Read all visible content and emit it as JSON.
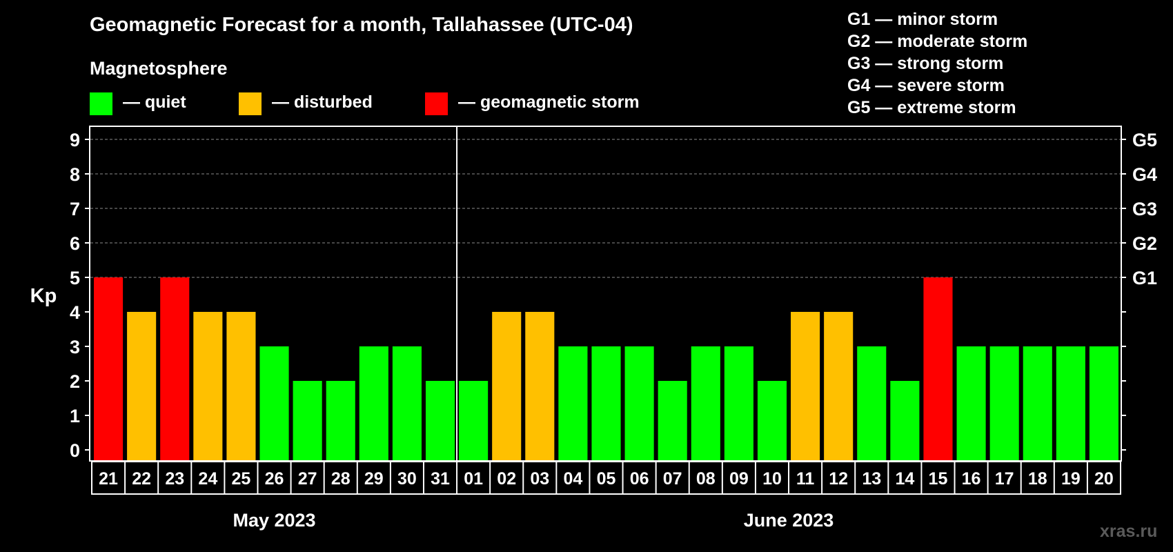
{
  "header": {
    "title": "Geomagnetic Forecast for a month, Tallahassee (UTC-04)",
    "subtitle": "Magnetosphere"
  },
  "legend": [
    {
      "label": "— quiet",
      "color": "#00ff00"
    },
    {
      "label": "— disturbed",
      "color": "#ffc000"
    },
    {
      "label": "— geomagnetic storm",
      "color": "#ff0000"
    }
  ],
  "storm_levels": [
    "G1 — minor storm",
    "G2 — moderate storm",
    "G3 — strong storm",
    "G4 — severe storm",
    "G5 — extreme storm"
  ],
  "watermark": "xras.ru",
  "chart_data": {
    "type": "bar",
    "title": "Geomagnetic Forecast for a month, Tallahassee (UTC-04)",
    "ylabel": "Kp",
    "ylim": [
      0,
      9
    ],
    "yticks": [
      0,
      1,
      2,
      3,
      4,
      5,
      6,
      7,
      8,
      9
    ],
    "right_axis_labels": [
      {
        "kp": 5,
        "label": "G1"
      },
      {
        "kp": 6,
        "label": "G2"
      },
      {
        "kp": 7,
        "label": "G3"
      },
      {
        "kp": 8,
        "label": "G4"
      },
      {
        "kp": 9,
        "label": "G5"
      }
    ],
    "categories": [
      "21",
      "22",
      "23",
      "24",
      "25",
      "26",
      "27",
      "28",
      "29",
      "30",
      "31",
      "01",
      "02",
      "03",
      "04",
      "05",
      "06",
      "07",
      "08",
      "09",
      "10",
      "11",
      "12",
      "13",
      "14",
      "15",
      "16",
      "17",
      "18",
      "19",
      "20"
    ],
    "values": [
      5,
      4,
      5,
      4,
      4,
      3,
      2,
      2,
      3,
      3,
      2,
      2,
      4,
      4,
      3,
      3,
      3,
      2,
      3,
      3,
      2,
      4,
      4,
      3,
      2,
      5,
      3,
      3,
      3,
      3,
      3
    ],
    "months": [
      {
        "label": "May 2023",
        "start": 0,
        "end": 10
      },
      {
        "label": "June 2023",
        "start": 11,
        "end": 30
      }
    ],
    "colors": {
      "quiet": "#00ff00",
      "disturbed": "#ffc000",
      "storm": "#ff0000"
    },
    "thresholds": {
      "disturbed_min": 4,
      "storm_min": 5
    }
  }
}
